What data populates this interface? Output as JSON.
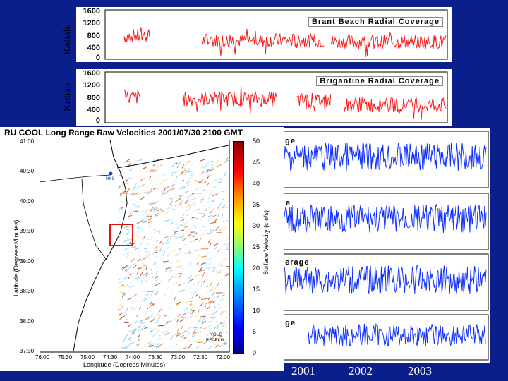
{
  "top_panels": [
    {
      "ylabel": "Radials",
      "legend": "Brant Beach Radial Coverage",
      "ticks": [
        "1600",
        "1200",
        "800",
        "400",
        "0"
      ]
    },
    {
      "ylabel": "Radials",
      "legend": "Brigantine Radial Coverage",
      "ticks": [
        "1600",
        "1200",
        "800",
        "400",
        "0"
      ]
    }
  ],
  "blue_fragments": [
    "age",
    "ge",
    "verage",
    "age"
  ],
  "years": [
    "2001",
    "2002",
    "2003"
  ],
  "map": {
    "title": "RU COOL Long Range Raw Velocities 2001/07/30 2100 GMT",
    "lat_ticks": [
      "41:00",
      "40:30",
      "40:00",
      "39:30",
      "39:00",
      "38:30",
      "38:00",
      "37:30"
    ],
    "lon_ticks": [
      "76:00",
      "75:30",
      "75:00",
      "74:30",
      "74:00",
      "73:30",
      "73:00",
      "72:30",
      "72:00"
    ],
    "ylabel": "Latitude (Degrees:Minutes)",
    "xlabel": "Longitude (Degrees:Minutes)",
    "cbar_ticks": [
      "50",
      "45",
      "40",
      "35",
      "30",
      "25",
      "20",
      "15",
      "10",
      "5",
      "0"
    ],
    "cbar_label": "Surface Velocity (cm/s)",
    "site_label": "HKS",
    "corner_label1": "YOUB",
    "corner_label2": "RECEKH"
  },
  "colors": {
    "background": "#0a1f8c",
    "red": "#ff1a1a",
    "blue": "#1030ff",
    "box": "#e01010"
  },
  "chart_data": [
    {
      "type": "line",
      "title": "Brant Beach Radial Coverage",
      "ylabel": "Radials",
      "ylim": [
        0,
        1600
      ],
      "yticks": [
        0,
        400,
        800,
        1200,
        1600
      ],
      "series": [
        {
          "name": "Brant Beach",
          "color": "#ff1a1a",
          "segments": [
            {
              "start": 0.05,
              "end": 0.13,
              "level": 750
            },
            {
              "start": 0.28,
              "end": 0.64,
              "level": 600
            },
            {
              "start": 0.66,
              "end": 1.0,
              "level": 550
            }
          ]
        }
      ]
    },
    {
      "type": "line",
      "title": "Brigantine Radial Coverage",
      "ylabel": "Radials",
      "ylim": [
        0,
        1600
      ],
      "yticks": [
        0,
        400,
        800,
        1200,
        1600
      ],
      "series": [
        {
          "name": "Brigantine",
          "color": "#ff1a1a",
          "segments": [
            {
              "start": 0.05,
              "end": 0.1,
              "level": 800
            },
            {
              "start": 0.22,
              "end": 0.5,
              "level": 750
            },
            {
              "start": 0.56,
              "end": 0.66,
              "level": 700
            },
            {
              "start": 0.7,
              "end": 1.0,
              "level": 550
            }
          ]
        }
      ]
    }
  ]
}
